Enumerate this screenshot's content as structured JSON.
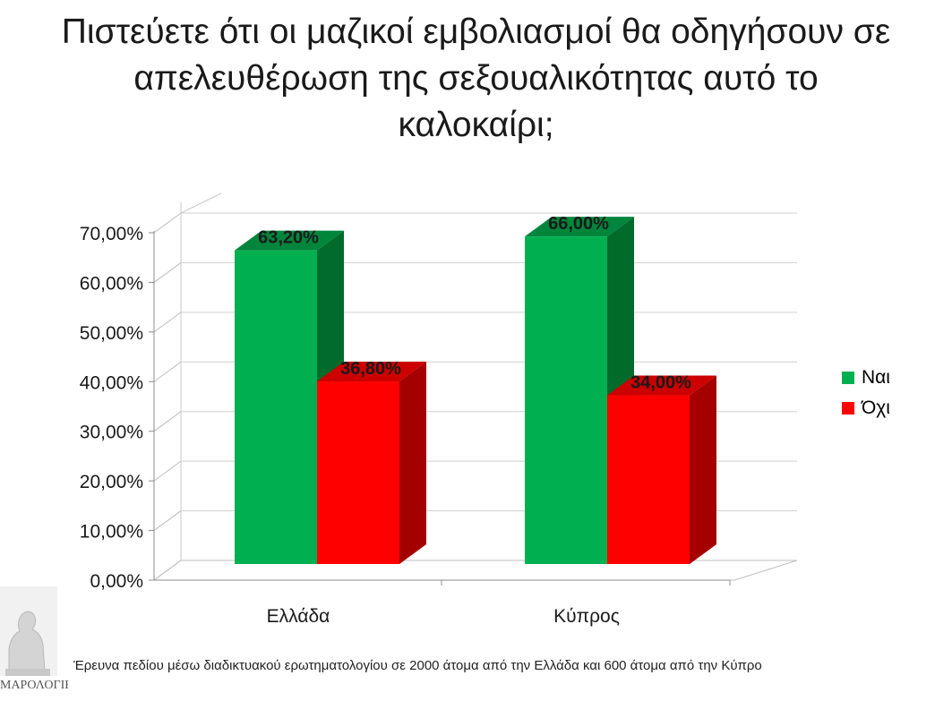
{
  "title_lines": [
    "Πιστεύετε ότι οι μαζικοί εμβολιασμοί θα οδηγήσουν σε",
    "απελευθέρωση της σεξουαλικότητας αυτό το",
    "καλοκαίρι;"
  ],
  "chart_data": {
    "type": "bar",
    "categories": [
      "Ελλάδα",
      "Κύπρος"
    ],
    "series": [
      {
        "name": "Ναι",
        "values": [
          63.2,
          66.0
        ],
        "labels": [
          "63,20%",
          "66,00%"
        ]
      },
      {
        "name": "Όχι",
        "values": [
          36.8,
          34.0
        ],
        "labels": [
          "36,80%",
          "34,00%"
        ]
      }
    ],
    "yticks": [
      "0,00%",
      "10,00%",
      "20,00%",
      "30,00%",
      "40,00%",
      "50,00%",
      "60,00%",
      "70,00%"
    ],
    "ylim": [
      0,
      70
    ],
    "grid": true,
    "legend": "right",
    "colors": {
      "yes_front": "#00b050",
      "yes_side": "#006b2a",
      "yes_top": "#00863c",
      "no_front": "#ff0000",
      "no_side": "#a50000",
      "no_top": "#cc0000"
    }
  },
  "footnote": "Έρευνα πεδίου μέσω διαδικτυακού ερωτηματολογίου σε 2000 άτομα από την Ελλάδα και 600 άτομα από την Κύπρο",
  "logo_text": "ΜΑΡΟΛΟΓΙΚΟ"
}
